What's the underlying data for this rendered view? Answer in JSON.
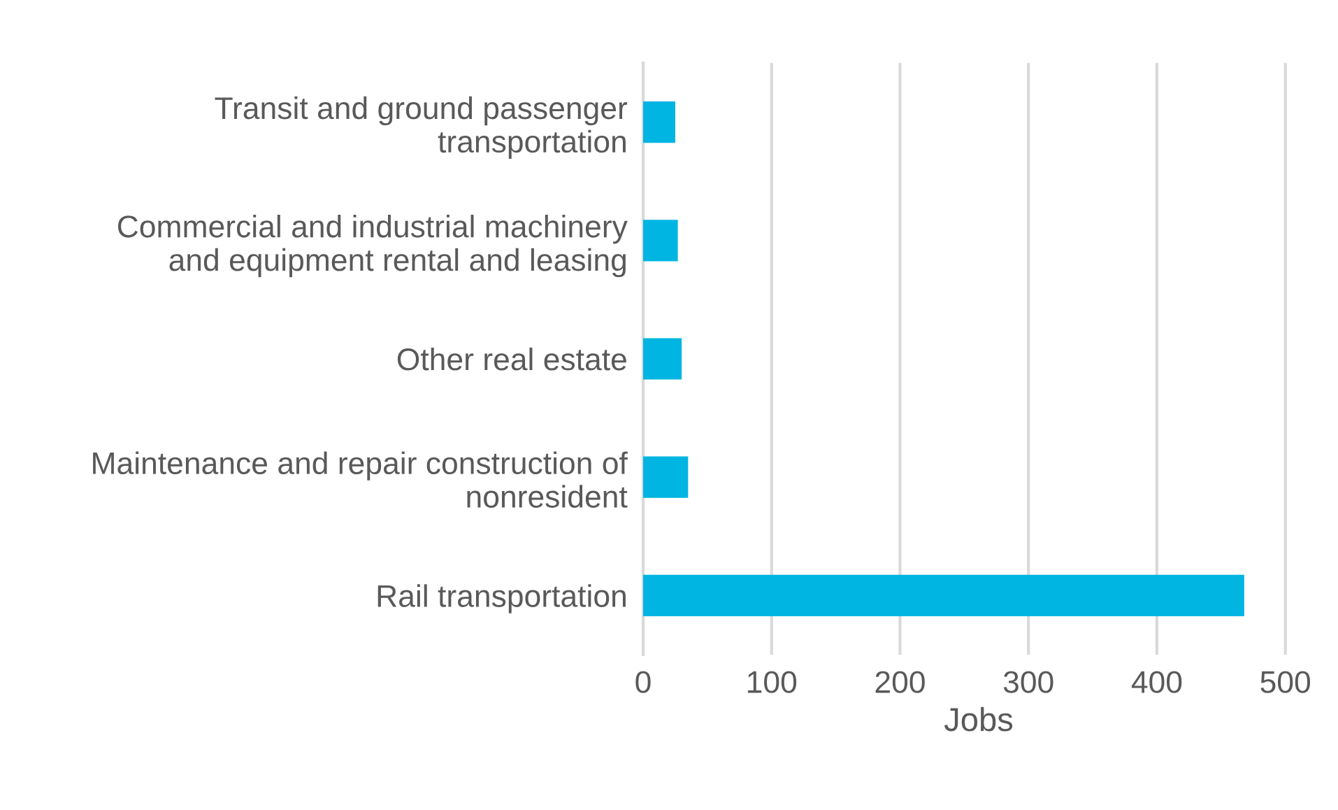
{
  "chart_data": {
    "type": "bar",
    "orientation": "horizontal",
    "xlabel": "Jobs",
    "categories": [
      "Transit and ground passenger\ntransportation",
      "Commercial and industrial machinery\nand equipment rental and leasing",
      "Other real estate",
      "Maintenance and repair construction of\nnonresident",
      "Rail transportation"
    ],
    "values": [
      25,
      27,
      30,
      35,
      468
    ],
    "color": "#00b5e2",
    "xlim": [
      0,
      500
    ],
    "xticks": [
      0,
      100,
      200,
      300,
      400,
      500
    ],
    "grid": "x",
    "legend": false
  }
}
